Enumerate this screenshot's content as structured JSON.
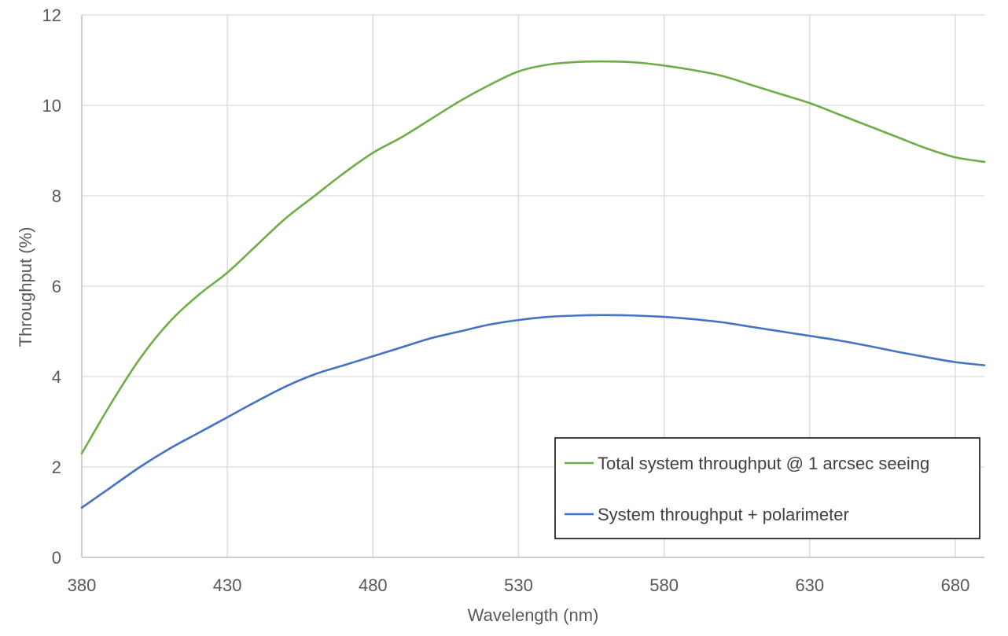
{
  "chart_data": {
    "type": "line",
    "xlabel": "Wavelength (nm)",
    "ylabel": "Throughput (%)",
    "xlim": [
      380,
      690
    ],
    "ylim": [
      0,
      12
    ],
    "xticks": [
      380,
      430,
      480,
      530,
      580,
      630,
      680
    ],
    "yticks": [
      0,
      2,
      4,
      6,
      8,
      10,
      12
    ],
    "grid": true,
    "legend_position": "bottom-right",
    "series": [
      {
        "name": "Total system throughput @ 1 arcsec seeing",
        "color": "#70AD47",
        "x": [
          380,
          390,
          400,
          410,
          420,
          430,
          440,
          450,
          460,
          470,
          480,
          490,
          500,
          510,
          520,
          530,
          540,
          550,
          560,
          570,
          580,
          590,
          600,
          610,
          620,
          630,
          640,
          650,
          660,
          670,
          680,
          690
        ],
        "y": [
          2.3,
          3.4,
          4.4,
          5.2,
          5.8,
          6.3,
          6.9,
          7.5,
          8.0,
          8.5,
          8.95,
          9.3,
          9.7,
          10.1,
          10.45,
          10.75,
          10.9,
          10.96,
          10.97,
          10.95,
          10.88,
          10.78,
          10.65,
          10.45,
          10.25,
          10.05,
          9.8,
          9.55,
          9.3,
          9.05,
          8.85,
          8.75
        ]
      },
      {
        "name": "System throughput + polarimeter",
        "color": "#4472C4",
        "x": [
          380,
          390,
          400,
          410,
          420,
          430,
          440,
          450,
          460,
          470,
          480,
          490,
          500,
          510,
          520,
          530,
          540,
          550,
          560,
          570,
          580,
          590,
          600,
          610,
          620,
          630,
          640,
          650,
          660,
          670,
          680,
          690
        ],
        "y": [
          1.1,
          1.55,
          2.0,
          2.4,
          2.75,
          3.1,
          3.45,
          3.78,
          4.05,
          4.25,
          4.45,
          4.65,
          4.85,
          5.0,
          5.15,
          5.25,
          5.32,
          5.35,
          5.36,
          5.35,
          5.32,
          5.27,
          5.2,
          5.1,
          5.0,
          4.9,
          4.8,
          4.68,
          4.55,
          4.43,
          4.32,
          4.25
        ]
      }
    ]
  }
}
